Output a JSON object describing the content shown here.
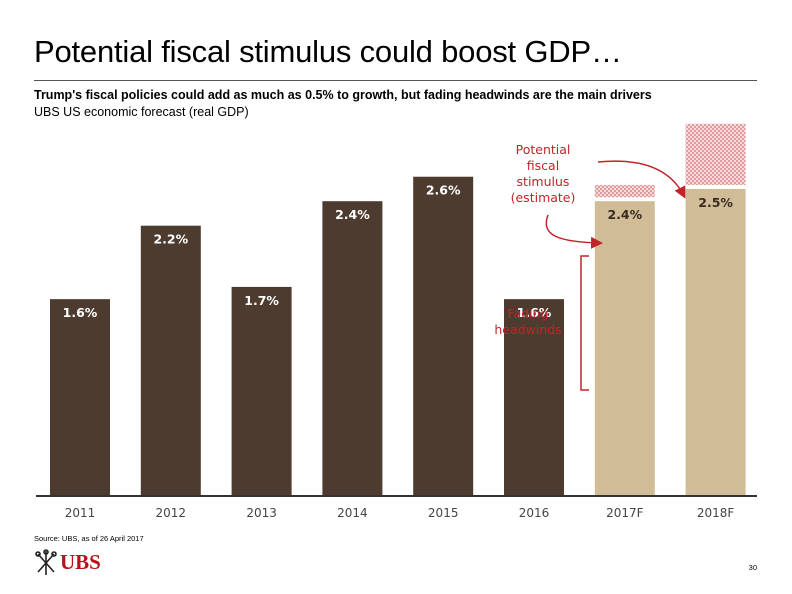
{
  "header": {
    "title": "Potential fiscal stimulus could boost GDP…",
    "subtitle": "Trump's fiscal policies could add as much as 0.5% to growth, but fading headwinds are the main drivers",
    "subsubtitle": "UBS US economic forecast (real GDP)"
  },
  "chart_data": {
    "type": "bar",
    "categories": [
      "2011",
      "2012",
      "2013",
      "2014",
      "2015",
      "2016",
      "2017F",
      "2018F"
    ],
    "values": [
      1.6,
      2.2,
      1.7,
      2.4,
      2.6,
      1.6,
      2.4,
      2.5
    ],
    "value_labels": [
      "1.6%",
      "2.2%",
      "1.7%",
      "2.4%",
      "2.6%",
      "1.6%",
      "2.4%",
      "2.5%"
    ],
    "forecast": [
      false,
      false,
      false,
      false,
      false,
      false,
      true,
      true
    ],
    "stimulus_estimate": [
      0,
      0,
      0,
      0,
      0,
      0,
      0.1,
      0.5
    ],
    "ylim": [
      0,
      2.9
    ],
    "colors": {
      "actual": "#4e3b30",
      "forecast": "#d0bd98",
      "stimulus": "#e8a8a8",
      "annotation": "#c0242a"
    },
    "annotations": {
      "stimulus": "Potential fiscal stimulus (estimate)",
      "stimulus_lines": [
        "Potential",
        "fiscal",
        "stimulus",
        "(estimate)"
      ],
      "headwinds_lines": [
        "Fading",
        "headwinds"
      ]
    }
  },
  "footer": {
    "source": "Source: UBS, as of 26 April 2017",
    "logo": "UBS",
    "page_number": "30"
  }
}
